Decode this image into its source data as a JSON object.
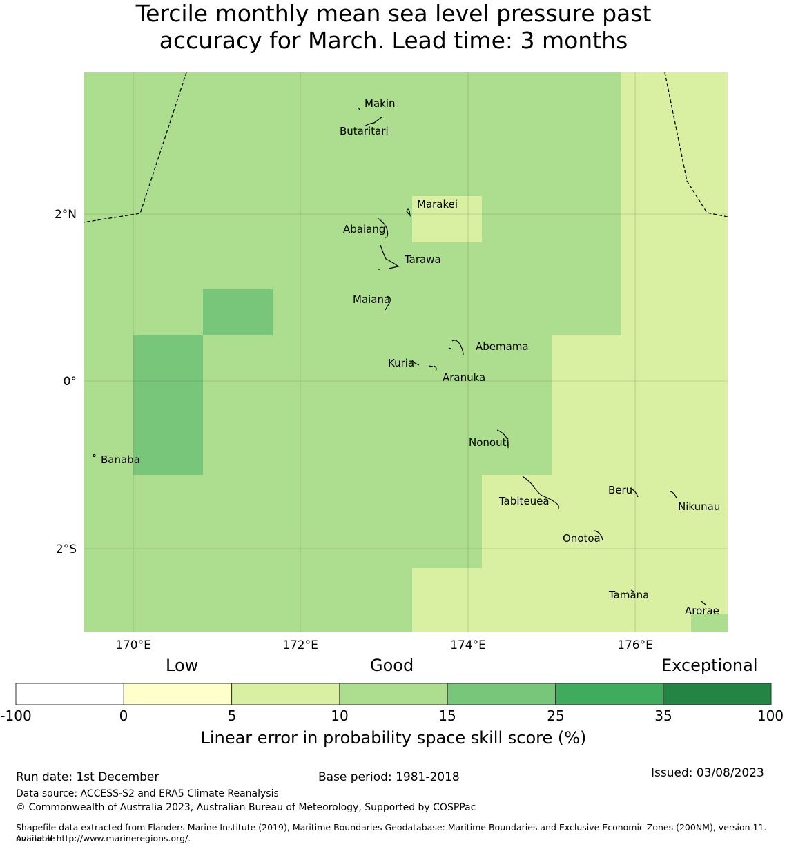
{
  "title_line1": "Tercile monthly mean sea level pressure past",
  "title_line2": "accuracy for March. Lead time: 3 months",
  "axes": {
    "lon_ticks": [
      "170°E",
      "172°E",
      "174°E",
      "176°E"
    ],
    "lat_ticks": [
      "2°N",
      "0°",
      "2°S"
    ]
  },
  "islands": [
    "Makin",
    "Butaritari",
    "Marakei",
    "Abaiang",
    "Tarawa",
    "Maiana",
    "Abemama",
    "Kuria",
    "Aranuka",
    "Nonouti",
    "Banaba",
    "Tabiteuea",
    "Beru",
    "Nikunau",
    "Onotoa",
    "Tamana",
    "Arorae"
  ],
  "colorbar": {
    "categories": [
      "Low",
      "Good",
      "Exceptional"
    ],
    "ticks": [
      "-100",
      "0",
      "5",
      "10",
      "15",
      "25",
      "35",
      "100"
    ],
    "colors": [
      "#ffffff",
      "#ffffcc",
      "#d9f0a3",
      "#addd8e",
      "#78c679",
      "#41ab5d",
      "#238443"
    ],
    "label": "Linear error in probability space skill score (%)"
  },
  "footer": {
    "run_date": "Run date: 1st December",
    "base_period": "Base period: 1981-2018",
    "issued": "Issued: 03/08/2023",
    "data_source": "Data source: ACCESS-S2 and ERA5 Climate Reanalysis",
    "copyright": "© Commonwealth of Australia 2023, Australian Bureau of Meteorology, Supported by COSPPac",
    "shapefile_1": "Shapefile data extracted from Flanders Marine Institute (2019), Maritime Boundaries Geodatabase: Maritime Boundaries and Exclusive Economic Zones (200NM), version 11. Available",
    "shapefile_2": "online at http://www.marineregions.org/."
  }
}
